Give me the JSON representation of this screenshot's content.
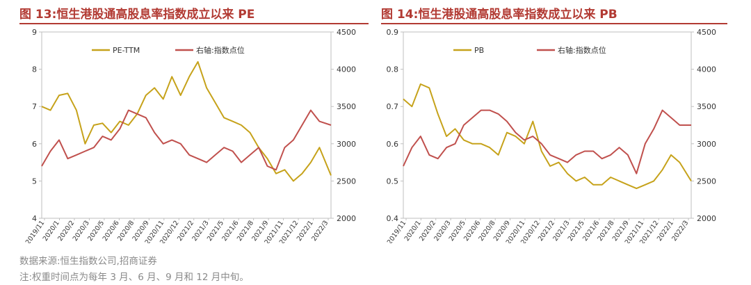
{
  "figures": [
    {
      "title": "图 13:恒生港股通高股息率指数成立以来 PE"
    },
    {
      "title": "图 14:恒生港股通高股息率指数成立以来 PB"
    }
  ],
  "footer": {
    "source": "数据来源:恒生指数公司,招商证券",
    "note": "注:权重时间点为每年 3 月、6 月、9 月和 12 月中旬。"
  },
  "colors": {
    "title": "#b23a33",
    "series_gold": "#c6a21a",
    "series_red": "#c0504d",
    "axis": "#bfbfbf",
    "text": "#333333"
  },
  "chart_data": [
    {
      "type": "line",
      "title": "",
      "x_labels": [
        "2019/11",
        "2020/1",
        "2020/2",
        "2020/3",
        "2020/5",
        "2020/6",
        "2020/8",
        "2020/9",
        "2020/11",
        "2020/12",
        "2021/2",
        "2021/3",
        "2021/5",
        "2021/6",
        "2021/8",
        "2021/9",
        "2021/11",
        "2021/12",
        "2022/1",
        "2022/3"
      ],
      "ylim_left": [
        4,
        9
      ],
      "yticks_left": [
        "4",
        "5",
        "6",
        "7",
        "8",
        "9"
      ],
      "ylim_right": [
        2000,
        4500
      ],
      "yticks_right": [
        "2000",
        "2500",
        "3000",
        "3500",
        "4000",
        "4500"
      ],
      "legend": "top-left",
      "series": [
        {
          "name": "PE-TTM",
          "axis": "left",
          "color": "#c6a21a",
          "t": [
            0,
            0.03,
            0.06,
            0.09,
            0.12,
            0.15,
            0.18,
            0.21,
            0.24,
            0.27,
            0.3,
            0.33,
            0.36,
            0.39,
            0.42,
            0.45,
            0.48,
            0.51,
            0.54,
            0.57,
            0.6,
            0.63,
            0.66,
            0.69,
            0.72,
            0.75,
            0.78,
            0.81,
            0.84,
            0.87,
            0.9,
            0.93,
            0.96,
            1.0
          ],
          "values": [
            7.0,
            6.9,
            7.3,
            7.35,
            6.9,
            6.0,
            6.5,
            6.55,
            6.3,
            6.6,
            6.5,
            6.8,
            7.3,
            7.5,
            7.2,
            7.8,
            7.3,
            7.8,
            8.2,
            7.5,
            7.1,
            6.7,
            6.6,
            6.5,
            6.3,
            5.9,
            5.6,
            5.2,
            5.3,
            5.0,
            5.2,
            5.5,
            5.9,
            5.15
          ]
        },
        {
          "name": "右轴:指数点位",
          "axis": "right",
          "color": "#c0504d",
          "t": [
            0,
            0.03,
            0.06,
            0.09,
            0.12,
            0.15,
            0.18,
            0.21,
            0.24,
            0.27,
            0.3,
            0.33,
            0.36,
            0.39,
            0.42,
            0.45,
            0.48,
            0.51,
            0.54,
            0.57,
            0.6,
            0.63,
            0.66,
            0.69,
            0.72,
            0.75,
            0.78,
            0.81,
            0.84,
            0.87,
            0.9,
            0.93,
            0.96,
            1.0
          ],
          "values": [
            2700,
            2900,
            3050,
            2800,
            2850,
            2900,
            2950,
            3100,
            3050,
            3200,
            3450,
            3400,
            3350,
            3150,
            3000,
            3050,
            3000,
            2850,
            2800,
            2750,
            2850,
            2950,
            2900,
            2750,
            2850,
            2950,
            2700,
            2650,
            2950,
            3050,
            3250,
            3450,
            3300,
            3250
          ]
        }
      ]
    },
    {
      "type": "line",
      "title": "",
      "x_labels": [
        "2019/11",
        "2020/1",
        "2020/2",
        "2020/3",
        "2020/5",
        "2020/6",
        "2020/8",
        "2020/9",
        "2020/11",
        "2020/12",
        "2021/2",
        "2021/3",
        "2021/5",
        "2021/6",
        "2021/8",
        "2021/9",
        "2021/11",
        "2021/12",
        "2022/1",
        "2022/3"
      ],
      "ylim_left": [
        0.4,
        0.9
      ],
      "yticks_left": [
        "0.4",
        "0.5",
        "0.6",
        "0.7",
        "0.8",
        "0.9"
      ],
      "ylim_right": [
        2000,
        4500
      ],
      "yticks_right": [
        "2000",
        "2500",
        "3000",
        "3500",
        "4000",
        "4500"
      ],
      "legend": "top-left",
      "series": [
        {
          "name": "PB",
          "axis": "left",
          "color": "#c6a21a",
          "t": [
            0,
            0.03,
            0.06,
            0.09,
            0.12,
            0.15,
            0.18,
            0.21,
            0.24,
            0.27,
            0.3,
            0.33,
            0.36,
            0.39,
            0.42,
            0.45,
            0.48,
            0.51,
            0.54,
            0.57,
            0.6,
            0.63,
            0.66,
            0.69,
            0.72,
            0.75,
            0.78,
            0.81,
            0.84,
            0.87,
            0.9,
            0.93,
            0.96,
            1.0
          ],
          "values": [
            0.72,
            0.7,
            0.76,
            0.75,
            0.68,
            0.62,
            0.64,
            0.61,
            0.6,
            0.6,
            0.59,
            0.57,
            0.63,
            0.62,
            0.6,
            0.66,
            0.58,
            0.54,
            0.55,
            0.52,
            0.5,
            0.51,
            0.49,
            0.49,
            0.51,
            0.5,
            0.49,
            0.48,
            0.49,
            0.5,
            0.53,
            0.57,
            0.55,
            0.5
          ]
        },
        {
          "name": "右轴:指数点位",
          "axis": "right",
          "color": "#c0504d",
          "t": [
            0,
            0.03,
            0.06,
            0.09,
            0.12,
            0.15,
            0.18,
            0.21,
            0.24,
            0.27,
            0.3,
            0.33,
            0.36,
            0.39,
            0.42,
            0.45,
            0.48,
            0.51,
            0.54,
            0.57,
            0.6,
            0.63,
            0.66,
            0.69,
            0.72,
            0.75,
            0.78,
            0.81,
            0.84,
            0.87,
            0.9,
            0.93,
            0.96,
            1.0
          ],
          "values": [
            2700,
            2950,
            3100,
            2850,
            2800,
            2950,
            3000,
            3250,
            3350,
            3450,
            3450,
            3400,
            3300,
            3150,
            3050,
            3100,
            3000,
            2850,
            2800,
            2750,
            2850,
            2900,
            2900,
            2800,
            2850,
            2950,
            2850,
            2600,
            3000,
            3200,
            3450,
            3350,
            3250,
            3250
          ]
        }
      ]
    }
  ]
}
